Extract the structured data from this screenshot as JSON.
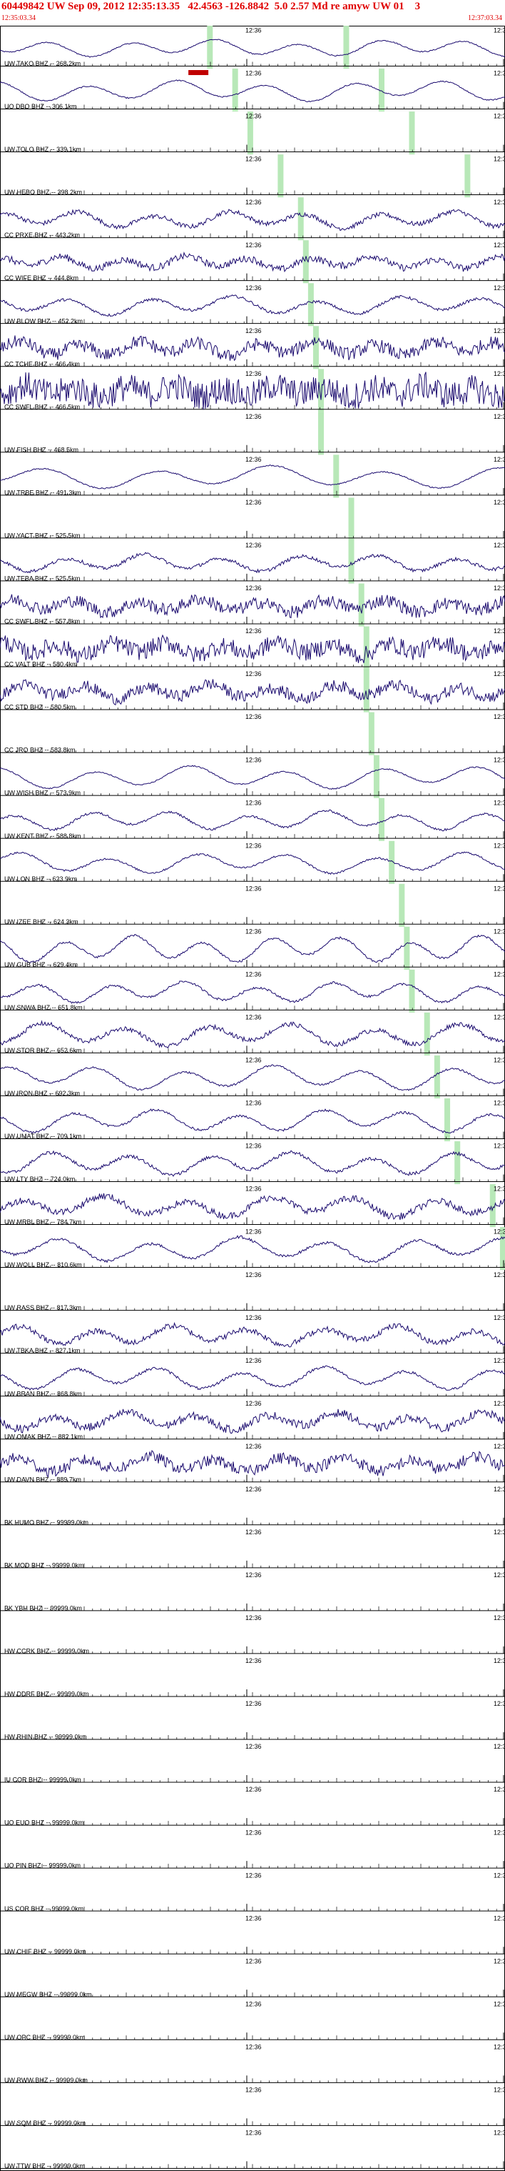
{
  "header": {
    "title": "60449842 UW Sep 09, 2012 12:35:13.35   42.4563 -126.8842  5.0 2.57 Md re amyw UW 01    3",
    "start_time": "12:35:03.34",
    "end_time": "12:37:03.34"
  },
  "colors": {
    "trace": "#1a0a6e",
    "pick": "#b8e8b8",
    "header": "#e00000",
    "grid": "#000000",
    "marker": "#c00000"
  },
  "chart_data": {
    "type": "line",
    "title": "60449842 UW Sep 09, 2012 12:35:13.35   42.4563 -126.8842  5.0 2.57 Md re amyw UW 01    3",
    "x_start": "12:35:03.34",
    "x_end": "12:37:03.34",
    "time_labels": [
      "12:36",
      "12:3"
    ],
    "grid": true,
    "series": [
      {
        "name": "UW TAKO BHZ -- 268.2km",
        "amp": 0.45,
        "noise": 0.05,
        "freq": 0.3,
        "pick": 0.41,
        "pick2": 0.68
      },
      {
        "name": "UO DBO BHZ -- 306.1km",
        "amp": 0.55,
        "noise": 0.05,
        "freq": 0.28,
        "pick": 0.46,
        "pick2": 0.75,
        "marker": 0.39
      },
      {
        "name": "UW TOLO BHZ -- 339.1km",
        "amp": 0.0,
        "noise": 0.0,
        "freq": 0.0,
        "pick": 0.49,
        "pick2": 0.81
      },
      {
        "name": "UW HEBO BHZ -- 398.2km",
        "amp": 0.0,
        "noise": 0.0,
        "freq": 0.0,
        "pick": 0.55,
        "pick2": 0.92
      },
      {
        "name": "CC PRXE BHZ -- 443.2km",
        "amp": 0.45,
        "noise": 0.2,
        "freq": 0.33,
        "pick": 0.59
      },
      {
        "name": "CC WIFE BHZ -- 444.8km",
        "amp": 0.35,
        "noise": 0.3,
        "freq": 0.4,
        "pick": 0.6
      },
      {
        "name": "UW BLOW BHZ -- 452.2km",
        "amp": 0.5,
        "noise": 0.12,
        "freq": 0.3,
        "pick": 0.61
      },
      {
        "name": "CC TCHE BHZ -- 466.4km",
        "amp": 0.4,
        "noise": 0.55,
        "freq": 0.42,
        "pick": 0.62
      },
      {
        "name": "CC SWFL BHZ -- 466.5km",
        "amp": 0.3,
        "noise": 1.2,
        "freq": 0.5,
        "pick": 0.63
      },
      {
        "name": "UW FISH BHZ -- 468.5km",
        "amp": 0.0,
        "noise": 0.0,
        "freq": 0.0,
        "pick": 0.63
      },
      {
        "name": "UW TRBE BHZ -- 491.3km",
        "amp": 0.6,
        "noise": 0.05,
        "freq": 0.22,
        "pick": 0.66
      },
      {
        "name": "UW YACT BHZ -- 525.5km",
        "amp": 0.0,
        "noise": 0.0,
        "freq": 0.0,
        "pick": 0.69
      },
      {
        "name": "UW TEBA BHZ -- 525.5km",
        "amp": 0.45,
        "noise": 0.15,
        "freq": 0.32,
        "pick": 0.69
      },
      {
        "name": "CC SWFL BHZ -- 557.8km",
        "amp": 0.35,
        "noise": 0.55,
        "freq": 0.4,
        "pick": 0.71
      },
      {
        "name": "CC VALT BHZ -- 580.4km",
        "amp": 0.35,
        "noise": 0.75,
        "freq": 0.45,
        "pick": 0.72
      },
      {
        "name": "CC STD BHZ -- 580.5km",
        "amp": 0.4,
        "noise": 0.5,
        "freq": 0.4,
        "pick": 0.72
      },
      {
        "name": "CC JRO BHZ -- 583.8km",
        "amp": 0.0,
        "noise": 0.0,
        "freq": 0.0,
        "pick": 0.73
      },
      {
        "name": "UW WISH BHZ -- 573.9km",
        "amp": 0.6,
        "noise": 0.05,
        "freq": 0.26,
        "pick": 0.74
      },
      {
        "name": "UW KENT BHZ -- 588.8km",
        "amp": 0.5,
        "noise": 0.1,
        "freq": 0.32,
        "pick": 0.75
      },
      {
        "name": "UW LON BHZ -- 623.9km",
        "amp": 0.55,
        "noise": 0.08,
        "freq": 0.28,
        "pick": 0.77
      },
      {
        "name": "UW IZEE BHZ -- 624.3km",
        "amp": 0.0,
        "noise": 0.0,
        "freq": 0.0,
        "pick": 0.79
      },
      {
        "name": "UW GUB BHZ -- 629.4km",
        "amp": 0.7,
        "noise": 0.1,
        "freq": 0.36,
        "pick": 0.8
      },
      {
        "name": "UW SNWA BHZ -- 651.8km",
        "amp": 0.55,
        "noise": 0.1,
        "freq": 0.34,
        "pick": 0.81
      },
      {
        "name": "UW STOR BHZ -- 652.6km",
        "amp": 0.6,
        "noise": 0.2,
        "freq": 0.3,
        "pick": 0.84
      },
      {
        "name": "UW IRON BHZ -- 692.3km",
        "amp": 0.65,
        "noise": 0.08,
        "freq": 0.28,
        "pick": 0.86
      },
      {
        "name": "UW UMAT BHZ -- 709.1km",
        "amp": 0.6,
        "noise": 0.1,
        "freq": 0.3,
        "pick": 0.88
      },
      {
        "name": "UW LTY BHZ -- 724.0km",
        "amp": 0.6,
        "noise": 0.15,
        "freq": 0.31,
        "pick": 0.9
      },
      {
        "name": "UW MRBL BHZ -- 784.7km",
        "amp": 0.55,
        "noise": 0.3,
        "freq": 0.3,
        "pick": 0.97
      },
      {
        "name": "UW WOLL BHZ -- 810.6km",
        "amp": 0.65,
        "noise": 0.12,
        "freq": 0.28,
        "pick": 0.99
      },
      {
        "name": "UW RASS BHZ -- 817.3km",
        "amp": 0.0,
        "noise": 0.0,
        "freq": 0.0
      },
      {
        "name": "UW TBKA BHZ -- 827.1km",
        "amp": 0.5,
        "noise": 0.25,
        "freq": 0.33
      },
      {
        "name": "UW BRAN BHZ -- 868.8km",
        "amp": 0.6,
        "noise": 0.12,
        "freq": 0.3
      },
      {
        "name": "UW OMAK BHZ -- 882.1km",
        "amp": 0.45,
        "noise": 0.35,
        "freq": 0.35
      },
      {
        "name": "UW DAVN BHZ -- 889.7km",
        "amp": 0.4,
        "noise": 0.5,
        "freq": 0.38
      },
      {
        "name": "BK HUMO BHZ -- 99999.0km",
        "amp": 0.0,
        "noise": 0.0,
        "freq": 0.0
      },
      {
        "name": "BK MOD BHZ -- 99999.0km",
        "amp": 0.0,
        "noise": 0.0,
        "freq": 0.0
      },
      {
        "name": "BK YBH BHZ -- 99999.0km",
        "amp": 0.0,
        "noise": 0.0,
        "freq": 0.0
      },
      {
        "name": "HW CCRK BHZ -- 99999.0km",
        "amp": 0.0,
        "noise": 0.0,
        "freq": 0.0
      },
      {
        "name": "HW DDRF BHZ -- 99999.0km",
        "amp": 0.0,
        "noise": 0.0,
        "freq": 0.0
      },
      {
        "name": "HW RHIN BHZ -- 99999.0km",
        "amp": 0.0,
        "noise": 0.0,
        "freq": 0.0
      },
      {
        "name": "IU COR BHZ -- 99999.0km",
        "amp": 0.0,
        "noise": 0.0,
        "freq": 0.0
      },
      {
        "name": "UO EUO BHZ -- 99999.0km",
        "amp": 0.0,
        "noise": 0.0,
        "freq": 0.0
      },
      {
        "name": "UO PIN BHZ -- 99999.0km",
        "amp": 0.0,
        "noise": 0.0,
        "freq": 0.0
      },
      {
        "name": "US COR BHZ -- 99999.0km",
        "amp": 0.0,
        "noise": 0.0,
        "freq": 0.0
      },
      {
        "name": "UW CHIF BHZ -- 99999.0km",
        "amp": 0.0,
        "noise": 0.0,
        "freq": 0.0
      },
      {
        "name": "UW MEGW BHZ -- 99999.0km",
        "amp": 0.0,
        "noise": 0.0,
        "freq": 0.0
      },
      {
        "name": "UW OPC BHZ -- 99999.0km",
        "amp": 0.0,
        "noise": 0.0,
        "freq": 0.0
      },
      {
        "name": "UW RWW BHZ -- 99999.0km",
        "amp": 0.0,
        "noise": 0.0,
        "freq": 0.0
      },
      {
        "name": "UW SQM BHZ -- 99999.0km",
        "amp": 0.0,
        "noise": 0.0,
        "freq": 0.0
      },
      {
        "name": "UW TTW BHZ -- 99999.0km",
        "amp": 0.0,
        "noise": 0.0,
        "freq": 0.0
      }
    ]
  }
}
